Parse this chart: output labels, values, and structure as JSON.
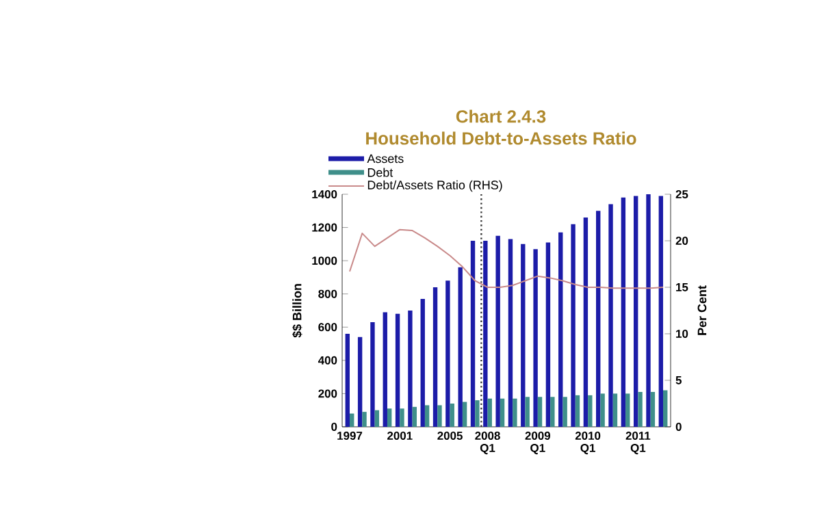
{
  "chart_data": {
    "type": "bar",
    "title": "Chart 2.4.3",
    "subtitle": "Household Debt-to-Assets Ratio",
    "ylabel": "$$ Billion",
    "y2label": "Per Cent",
    "categories": [
      "1997",
      null,
      null,
      null,
      "2001",
      null,
      null,
      null,
      "2005",
      null,
      null,
      "2008 Q1",
      null,
      null,
      null,
      "2009 Q1",
      null,
      null,
      null,
      "2010 Q1",
      null,
      null,
      null,
      "2011 Q1",
      null,
      null
    ],
    "series": [
      {
        "name": "Assets",
        "color": "#1c1ca8",
        "values": [
          560,
          540,
          630,
          690,
          680,
          700,
          770,
          840,
          880,
          960,
          1120,
          1120,
          1150,
          1130,
          1100,
          1070,
          1110,
          1170,
          1220,
          1260,
          1300,
          1340,
          1380,
          1390,
          1400,
          1390
        ]
      },
      {
        "name": "Debt",
        "color": "#3f8f8a",
        "values": [
          80,
          90,
          100,
          110,
          110,
          120,
          130,
          130,
          140,
          150,
          160,
          170,
          170,
          170,
          180,
          180,
          180,
          180,
          190,
          190,
          200,
          200,
          200,
          210,
          210,
          220
        ]
      },
      {
        "name": "Debt/Assets Ratio (RHS)",
        "type": "line",
        "axis": "y2",
        "color": "#c98a8a",
        "values": [
          16.7,
          20.8,
          19.4,
          20.3,
          21.2,
          21.1,
          20.3,
          19.4,
          18.4,
          17.2,
          15.7,
          15.0,
          15.0,
          15.2,
          15.7,
          16.2,
          16.0,
          15.7,
          15.3,
          15.0,
          15.0,
          14.9,
          14.9,
          14.9,
          14.9,
          15.0
        ]
      }
    ],
    "ylim": [
      0,
      1400
    ],
    "yticks": [
      0,
      200,
      400,
      600,
      800,
      1000,
      1200,
      1400
    ],
    "y2lim": [
      0,
      25
    ],
    "y2ticks": [
      0,
      5,
      10,
      15,
      20,
      25
    ],
    "legend": "top left"
  }
}
